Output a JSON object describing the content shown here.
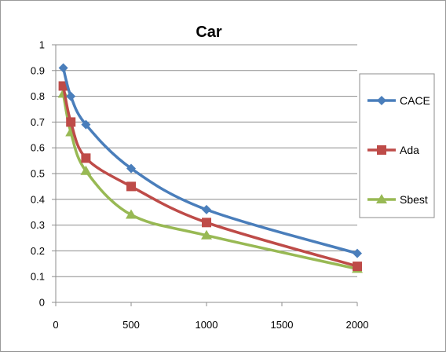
{
  "chart_data": {
    "type": "line",
    "title": "Car",
    "xlabel": "",
    "ylabel": "",
    "xlim": [
      0,
      2000
    ],
    "ylim": [
      0,
      1
    ],
    "xticks": [
      0,
      500,
      1000,
      1500,
      2000
    ],
    "yticks": [
      0,
      0.1,
      0.2,
      0.3,
      0.4,
      0.5,
      0.6,
      0.7,
      0.8,
      0.9,
      1
    ],
    "x_tick_labels": [
      "0",
      "500",
      "1000",
      "1500",
      "2000"
    ],
    "y_tick_labels": [
      "0",
      "0.1",
      "0.2",
      "0.3",
      "0.4",
      "0.5",
      "0.6",
      "0.7",
      "0.8",
      "0.9",
      "1"
    ],
    "grid": "horizontal",
    "legend_position": "right",
    "series": [
      {
        "name": "CACE",
        "color": "#4a7ebb",
        "marker": "diamond",
        "x": [
          50,
          100,
          200,
          500,
          1000,
          2000
        ],
        "y": [
          0.91,
          0.8,
          0.69,
          0.52,
          0.36,
          0.19
        ]
      },
      {
        "name": "Ada",
        "color": "#be4b48",
        "marker": "square",
        "x": [
          50,
          100,
          200,
          500,
          1000,
          2000
        ],
        "y": [
          0.84,
          0.7,
          0.56,
          0.45,
          0.31,
          0.14
        ]
      },
      {
        "name": "Sbest",
        "color": "#98b954",
        "marker": "triangle",
        "x": [
          50,
          100,
          200,
          500,
          1000,
          2000
        ],
        "y": [
          0.81,
          0.66,
          0.51,
          0.34,
          0.26,
          0.13
        ]
      }
    ]
  }
}
